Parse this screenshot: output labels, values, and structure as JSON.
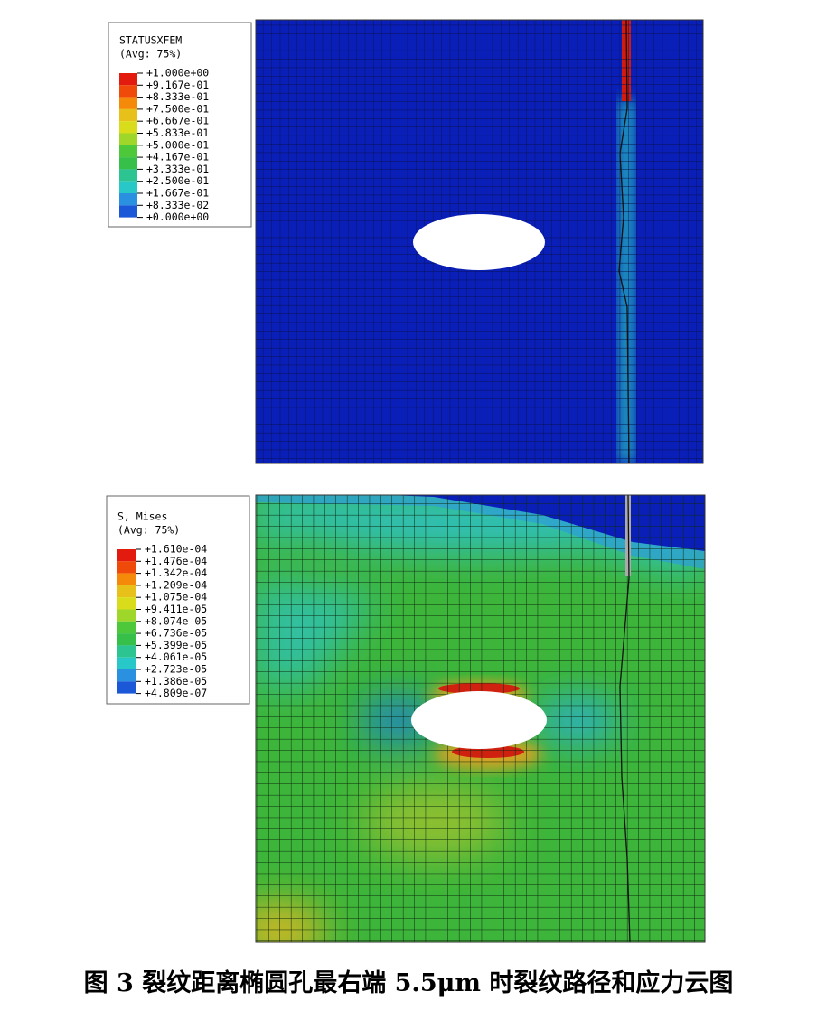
{
  "figures": [
    {
      "legend": {
        "title": "STATUSXFEM",
        "subtitle": "(Avg: 75%)",
        "labels": [
          "+1.000e+00",
          "+9.167e-01",
          "+8.333e-01",
          "+7.500e-01",
          "+6.667e-01",
          "+5.833e-01",
          "+5.000e-01",
          "+4.167e-01",
          "+3.333e-01",
          "+2.500e-01",
          "+1.667e-01",
          "+8.333e-02",
          "+0.000e+00"
        ]
      }
    },
    {
      "legend": {
        "title": "S, Mises",
        "subtitle": "(Avg: 75%)",
        "labels": [
          "+1.610e-04",
          "+1.476e-04",
          "+1.342e-04",
          "+1.209e-04",
          "+1.075e-04",
          "+9.411e-05",
          "+8.074e-05",
          "+6.736e-05",
          "+5.399e-05",
          "+4.061e-05",
          "+2.723e-05",
          "+1.386e-05",
          "+4.809e-07"
        ]
      }
    }
  ],
  "caption": "图 3  裂纹距离椭圆孔最右端 5.5μm 时裂纹路径和应力云图"
}
